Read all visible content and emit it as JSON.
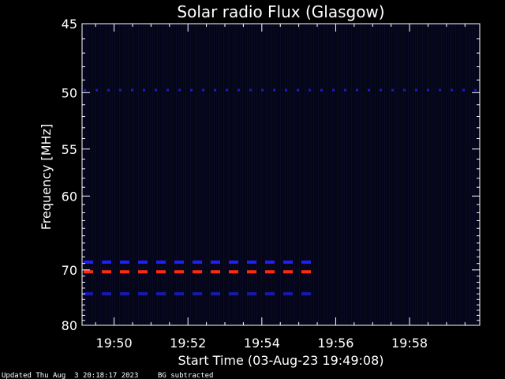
{
  "chart_data": {
    "type": "heatmap",
    "title": "Solar radio Flux (Glasgow)",
    "xlabel": "Start Time (03-Aug-23 19:49:08)",
    "ylabel": "Frequency [MHz]",
    "x_tick_labels": [
      "19:50",
      "19:52",
      "19:54",
      "19:56",
      "19:58"
    ],
    "x_ticks_minutes_after_1949": [
      1,
      3,
      5,
      7,
      9
    ],
    "xlim_minutes_after_1949": [
      0.133,
      10.9
    ],
    "y_tick_values": [
      45,
      50,
      55,
      60,
      70,
      80
    ],
    "y_scale": "reciprocal",
    "ylim": [
      45,
      80
    ],
    "background": "dark blue spectrogram, background subtracted",
    "features": [
      {
        "name": "dashed emission line",
        "frequency_mhz": 49.8,
        "start": "19:49:08",
        "end": "19:59:50",
        "color": "#1a1acc"
      },
      {
        "name": "dashed emission line",
        "frequency_mhz": 68.8,
        "start": "19:49:08",
        "end": "19:55:30",
        "color": "#1e1eff"
      },
      {
        "name": "dashed emission line",
        "frequency_mhz": 70.3,
        "start": "19:49:08",
        "end": "19:55:30",
        "color": "#ff2a10"
      },
      {
        "name": "dashed emission line",
        "frequency_mhz": 74.0,
        "start": "19:49:08",
        "end": "19:55:30",
        "color": "#1818b0"
      }
    ]
  },
  "footer": {
    "updated": "Updated Thu Aug  3 20:18:17 2023",
    "note": "BG subtracted"
  },
  "colors": {
    "background": "#000000",
    "plot_bg": "#050518",
    "axis": "#ffffff"
  }
}
